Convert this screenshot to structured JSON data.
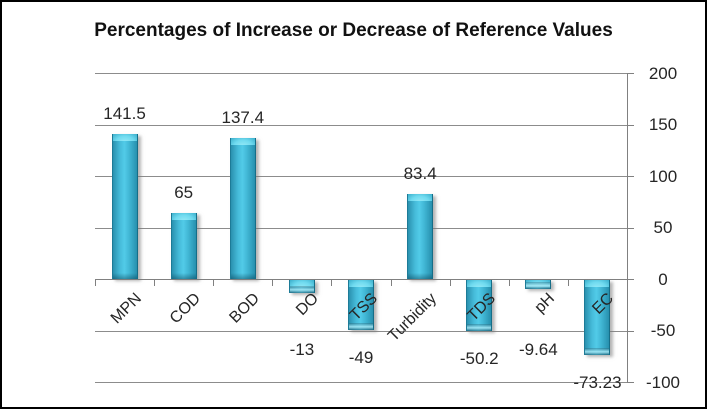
{
  "chart_data": {
    "type": "bar",
    "title": "Percentages of Increase or Decrease of Reference Values",
    "categories": [
      "MPN",
      "COD",
      "BOD",
      "DO",
      "TSS",
      "Turbidity",
      "TDS",
      "pH",
      "EC"
    ],
    "values": [
      141.5,
      65,
      137.4,
      -13,
      -49,
      83.4,
      -50.2,
      -9.64,
      -73.23
    ],
    "data_labels": [
      "141.5",
      "65",
      "137.4",
      "-13",
      "-49",
      "83.4",
      "-50.2",
      "-9.64",
      "-73.23"
    ],
    "xlabel": "",
    "ylabel": "",
    "ylim": [
      -100,
      200
    ],
    "yticks": [
      200,
      150,
      100,
      50,
      0,
      -50,
      -100
    ],
    "y_axis_side": "right",
    "grid": true,
    "legend": "none",
    "category_label_rotation_deg": -45,
    "colors": {
      "bar": "#3FB8D6",
      "bar_edge": "#1D7B97",
      "gridline": "#8C8C8C",
      "axis": "#808080",
      "text": "#262626",
      "title_text": "#111111",
      "background": "#FFFFFF",
      "border": "#000000"
    }
  }
}
